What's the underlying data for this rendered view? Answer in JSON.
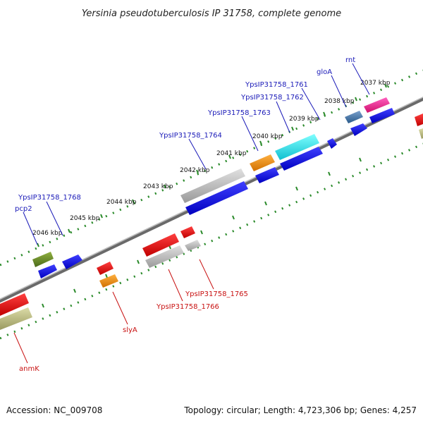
{
  "title": "Yersinia pseudotuberculosis IP 31758, complete genome",
  "footer": {
    "accession": "Accession: NC_009708",
    "summary": "Topology: circular; Length: 4,723,306 bp; Genes: 4,257"
  },
  "colors": {
    "backbone": "#777777",
    "ticks": "#2a8a2a",
    "label_forward": "#1a1ab8",
    "label_reverse": "#c81010"
  },
  "scale_labels": [
    "2037 kbp",
    "2038 kbp",
    "2039 kbp",
    "2040 kbp",
    "2041 kbp",
    "2042 kbp",
    "2043 kbp",
    "2044 kbp",
    "2045 kbp",
    "2046 kbp"
  ],
  "gene_labels_forward": [
    "rnt",
    "gloA",
    "YpsIP31758_1761",
    "YpsIP31758_1762",
    "YpsIP31758_1763",
    "YpsIP31758_1764",
    "YpsIP31758_1768",
    "pcp2"
  ],
  "gene_labels_reverse": [
    "YpsIP31758_1765",
    "YpsIP31758_1766",
    "slyA",
    "anmK"
  ],
  "feature_colors": {
    "rnt": "#e8208c",
    "gloA": "#4a7aaa",
    "YpsIP31758_1761": "#30e0e8",
    "YpsIP31758_1763": "#f08c10",
    "YpsIP31758_1764": "#b8b8b8",
    "pcp2": "#6a8a2a",
    "slyA": "#f08c10",
    "anmK": "#b8b880",
    "cds_forward": "#1010e0",
    "cds_reverse": "#e01010",
    "cds_grey": "#b0b0b0"
  }
}
